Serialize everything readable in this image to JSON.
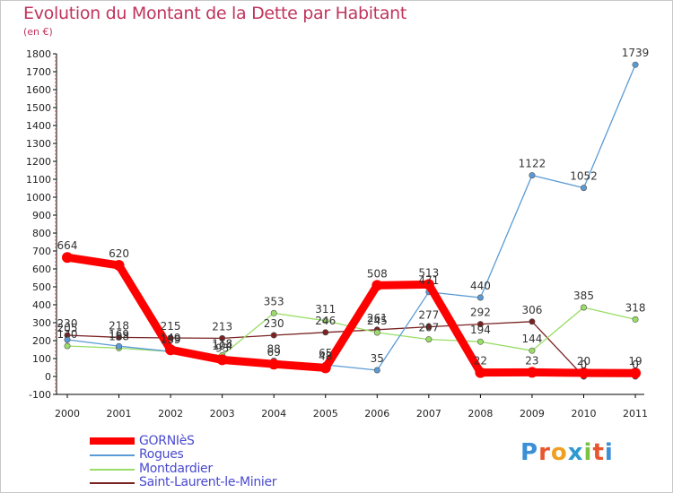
{
  "header": {
    "title": "Evolution du Montant de la Dette par Habitant",
    "unit": "(en €)"
  },
  "logo": {
    "text": "Proxiti",
    "letter_colors": [
      "#3a8fd6",
      "#e8562e",
      "#f0a020",
      "#2e9ad0",
      "#7cc242",
      "#e8562e",
      "#3a8fd6"
    ]
  },
  "chart_data": {
    "type": "line",
    "x": [
      "2000",
      "2001",
      "2002",
      "2003",
      "2004",
      "2005",
      "2006",
      "2007",
      "2008",
      "2009",
      "2010",
      "2011"
    ],
    "ylim": [
      -100,
      1800
    ],
    "yticks": [
      -100,
      0,
      100,
      200,
      300,
      400,
      500,
      600,
      700,
      800,
      900,
      1000,
      1100,
      1200,
      1300,
      1400,
      1500,
      1600,
      1700,
      1800
    ],
    "grid": false,
    "legend_position": "bottom-left",
    "series": [
      {
        "name": "GORNIèS",
        "color": "#ff0000",
        "values": [
          664,
          620,
          149,
          93,
          69,
          48,
          508,
          513,
          22,
          23,
          20,
          19
        ],
        "labels": [
          "664",
          "620",
          "149",
          "93",
          "69",
          "48",
          "508",
          "513",
          "22",
          "23",
          "20",
          "19"
        ]
      },
      {
        "name": "Rogues",
        "color": "#5b9bd5",
        "values": [
          205,
          169,
          139,
          104,
          88,
          65,
          35,
          471,
          440,
          1122,
          1052,
          1739
        ],
        "labels": [
          "205",
          "169",
          "139",
          "104",
          "88",
          "65",
          "35",
          "471",
          "440",
          "1122",
          "1052",
          "1739"
        ]
      },
      {
        "name": "Montdardier",
        "color": "#99dd66",
        "values": [
          170,
          158,
          139,
          118,
          353,
          311,
          245,
          207,
          194,
          144,
          385,
          318
        ],
        "labels": [
          "170",
          "158",
          "139",
          "118",
          "353",
          "311",
          "245",
          "207",
          "194",
          "144",
          "385",
          "318"
        ]
      },
      {
        "name": "Saint-Laurent-le-Minier",
        "color": "#7a2222",
        "values": [
          230,
          218,
          215,
          213,
          230,
          246,
          261,
          277,
          292,
          306,
          0,
          0
        ],
        "labels": [
          "230",
          "218",
          "215",
          "213",
          "230",
          "246",
          "261",
          "277",
          "292",
          "306",
          "0",
          "0"
        ]
      }
    ]
  }
}
